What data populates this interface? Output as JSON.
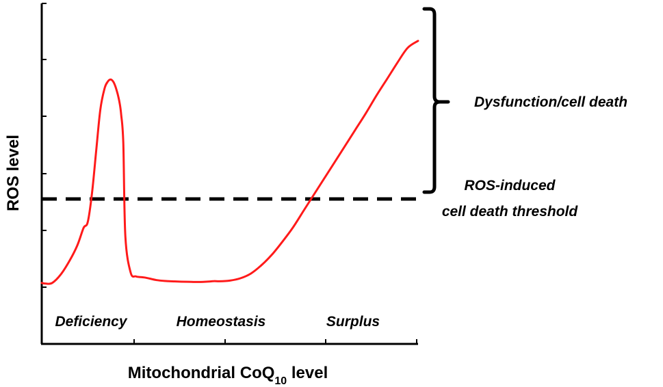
{
  "chart_data": {
    "type": "line",
    "xlabel": "Mitochondrial CoQ",
    "xlabel_subscript": "10",
    "xlabel_suffix": " level",
    "ylabel": "ROS level",
    "x_regions": [
      "Deficiency",
      "Homeostasis",
      "Surplus"
    ],
    "series": [
      {
        "color": "#ff1a1a",
        "x": [
          0,
          0.4,
          1.0,
          1.8,
          2.6,
          3.4,
          4.0,
          4.4,
          4.8,
          5.2,
          5.6,
          6.0,
          6.3,
          6.6,
          6.85,
          7.05,
          7.25,
          7.45,
          7.6,
          7.8,
          8.0,
          8.5,
          9.0,
          9.5,
          10.0,
          11.0,
          12.0,
          13.0,
          14.0,
          15.0,
          16.0,
          16.5,
          17.0,
          18.0,
          19.0,
          20.0,
          21.0,
          22.0,
          23.0,
          24.0,
          25.0,
          26.0,
          27.0,
          28.0,
          29.0,
          30.0,
          31.0,
          32.0,
          33.0,
          34.0,
          35.0,
          36.0
        ],
        "y": [
          1.0,
          0.97,
          1.0,
          1.35,
          1.9,
          2.6,
          3.35,
          3.6,
          4.8,
          6.6,
          8.4,
          9.3,
          9.6,
          9.7,
          9.6,
          9.4,
          9.1,
          8.7,
          8.2,
          7.0,
          3.0,
          1.45,
          1.28,
          1.25,
          1.22,
          1.12,
          1.08,
          1.06,
          1.05,
          1.04,
          1.06,
          1.08,
          1.07,
          1.1,
          1.2,
          1.4,
          1.75,
          2.2,
          2.75,
          3.35,
          4.05,
          4.75,
          5.45,
          6.15,
          6.85,
          7.55,
          8.25,
          9.0,
          9.7,
          10.4,
          11.05,
          11.35
        ]
      }
    ],
    "threshold_label_line1": "ROS-induced",
    "threshold_label_line2": "cell death threshold",
    "threshold_y": 3.6,
    "bracket_label": "Dysfunction/cell death",
    "xlim": [
      0,
      36
    ],
    "ylim": [
      0,
      12
    ],
    "grid": false,
    "legend": "none"
  }
}
